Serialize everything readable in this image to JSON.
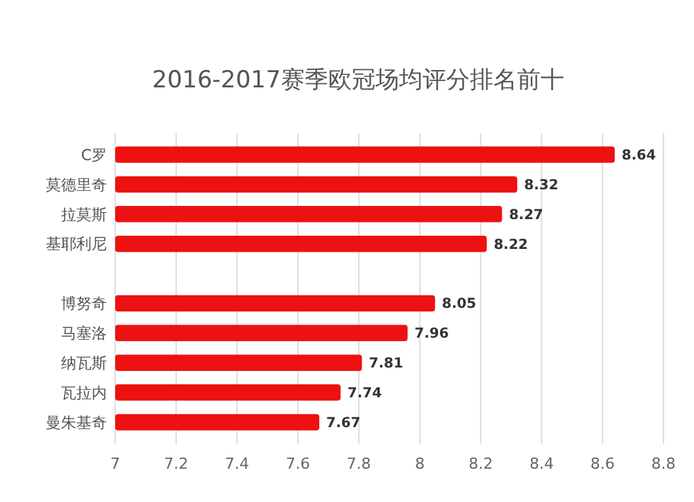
{
  "chart_data": {
    "type": "bar",
    "orientation": "horizontal",
    "title": "2016-2017赛季欧冠场均评分排名前十",
    "categories": [
      "C罗",
      "莫德里奇",
      "拉莫斯",
      "基耶利尼",
      null,
      "博努奇",
      "马塞洛",
      "纳瓦斯",
      "瓦拉内",
      "曼朱基奇"
    ],
    "values": [
      8.64,
      8.32,
      8.27,
      8.22,
      null,
      8.05,
      7.96,
      7.81,
      7.74,
      7.67
    ],
    "color": "#ee1111",
    "data_labels": true,
    "grid": "x",
    "xlim": [
      7,
      8.8
    ],
    "xticks": [
      7,
      7.2,
      7.4,
      7.6,
      7.8,
      8,
      8.2,
      8.4,
      8.6,
      8.8
    ]
  }
}
